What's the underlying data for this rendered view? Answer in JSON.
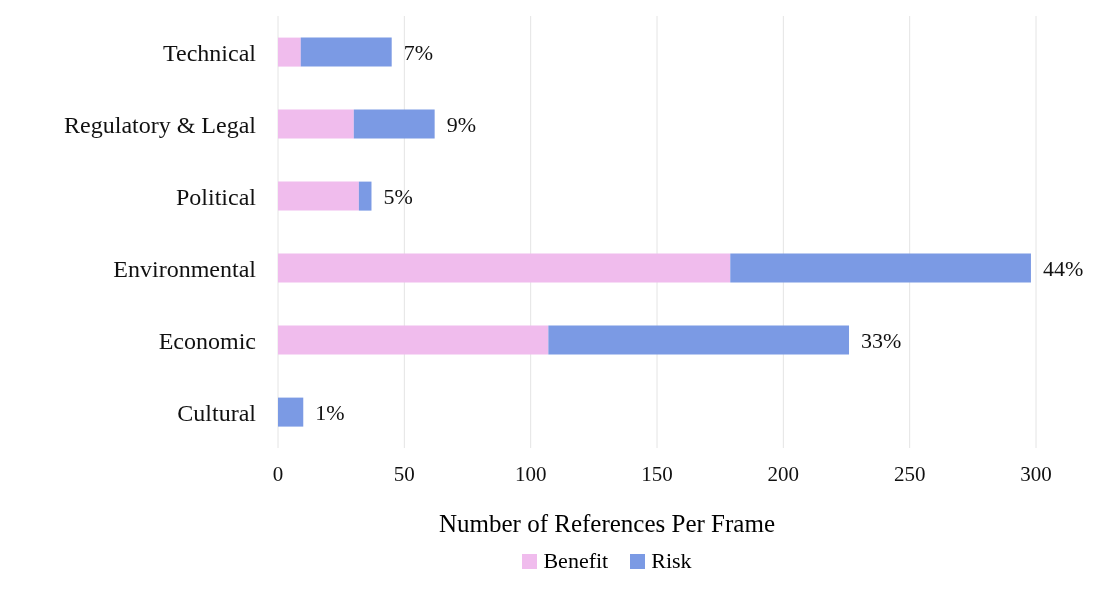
{
  "chart_data": {
    "type": "bar",
    "orientation": "horizontal",
    "stacked": true,
    "xlabel": "Number of References Per Frame",
    "categories": [
      "Technical",
      "Regulatory & Legal",
      "Political",
      "Environmental",
      "Economic",
      "Cultural"
    ],
    "series": [
      {
        "name": "Benefit",
        "color": "#f0bced",
        "values": [
          9,
          30,
          32,
          179,
          107,
          0
        ]
      },
      {
        "name": "Risk",
        "color": "#7b9ae4",
        "values": [
          36,
          32,
          5,
          119,
          119,
          10
        ]
      }
    ],
    "annotations": [
      {
        "text": "7%",
        "x": 45,
        "y": "Technical"
      },
      {
        "text": "9%",
        "x": 62,
        "y": "Regulatory & Legal"
      },
      {
        "text": "5%",
        "x": 37,
        "y": "Political"
      },
      {
        "text": "44%",
        "x": 298,
        "y": "Environmental"
      },
      {
        "text": "33%",
        "x": 226,
        "y": "Economic"
      },
      {
        "text": "1%",
        "x": 10,
        "y": "Cultural"
      }
    ],
    "xlim": [
      0,
      300
    ],
    "xticks": [
      0,
      50,
      100,
      150,
      200,
      250,
      300
    ],
    "grid": "x",
    "legend": "bottom"
  }
}
